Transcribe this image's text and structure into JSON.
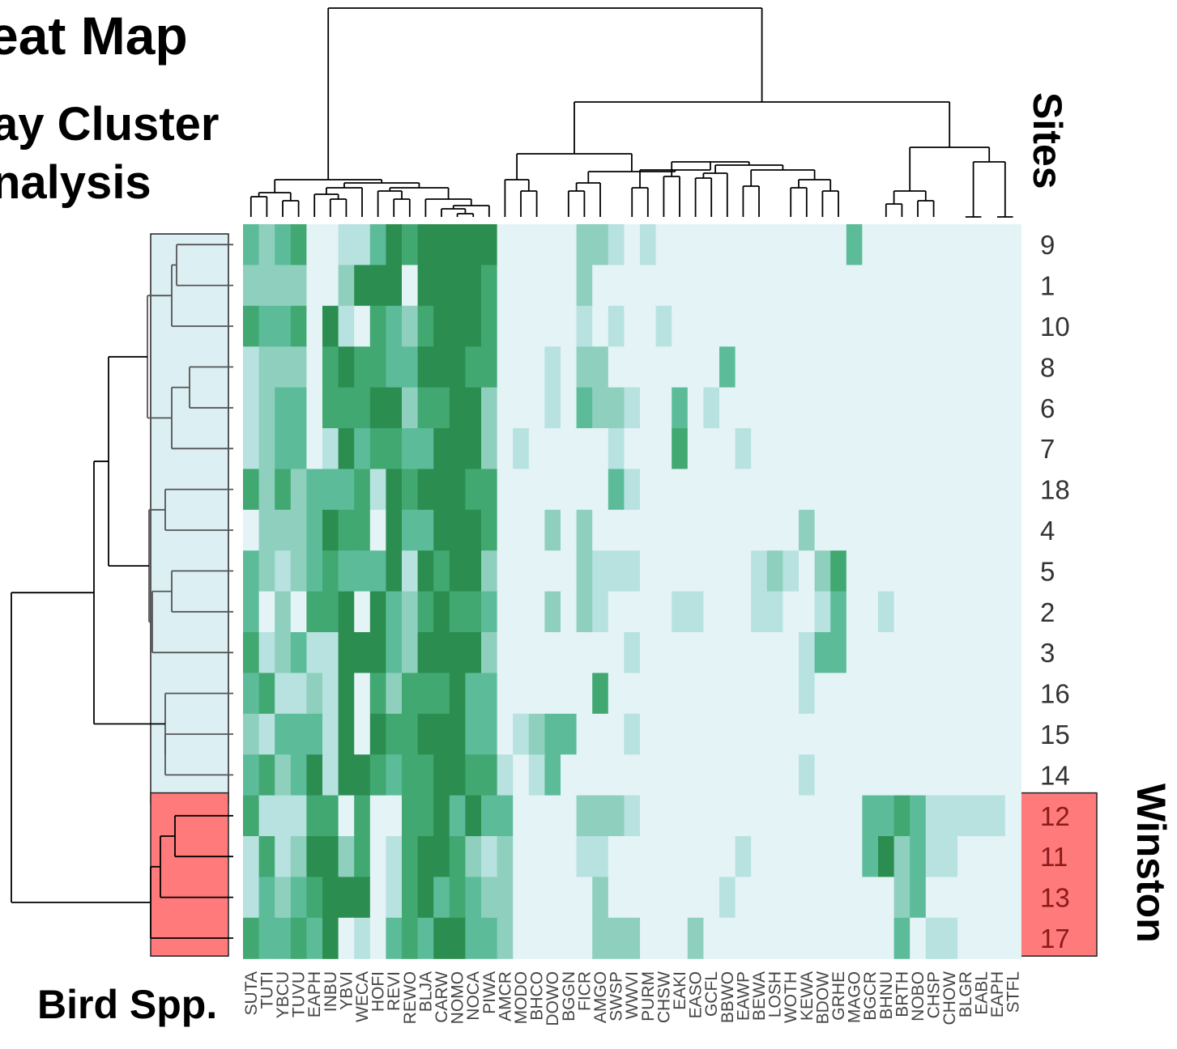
{
  "title_lines": [
    "eat Map",
    "ay Cluster",
    "nalysis"
  ],
  "x_axis_title": "Bird Spp.",
  "y_axis_title": "Sites",
  "group_label": "Winston",
  "colors": {
    "scale": [
      "#e3f3f6",
      "#b7e2df",
      "#8ed0bd",
      "#5cbc9a",
      "#41a872",
      "#2b8e50"
    ],
    "group_winston": "#ff7a7a",
    "group_other": "#dceff2",
    "dendrogram": "#555555",
    "dendrogram_dark": "#000000"
  },
  "chart_data": {
    "type": "heatmap",
    "title": "",
    "xlabel": "Bird Spp.",
    "ylabel": "Sites",
    "rows": [
      "9",
      "1",
      "10",
      "8",
      "6",
      "7",
      "18",
      "4",
      "5",
      "2",
      "3",
      "16",
      "15",
      "14",
      "12",
      "11",
      "13",
      "17"
    ],
    "row_groups": [
      "other",
      "other",
      "other",
      "other",
      "other",
      "other",
      "other",
      "other",
      "other",
      "other",
      "other",
      "other",
      "other",
      "other",
      "Winston",
      "Winston",
      "Winston",
      "Winston"
    ],
    "columns": [
      "SUTA",
      "TUTI",
      "YBCU",
      "TUVU",
      "EAPH",
      "INBU",
      "YBVI",
      "WECA",
      "HOFI",
      "REVI",
      "REWO",
      "BLJA",
      "CARW",
      "NOMO",
      "NOCA",
      "PIWA",
      "AMCR",
      "MODO",
      "BHCO",
      "DOWO",
      "BGGN",
      "FICR",
      "AMGO",
      "SWSP",
      "WWVI",
      "PURM",
      "CHSW",
      "EAKI",
      "EASO",
      "GCFL",
      "BBWO",
      "EAWP",
      "BEWA",
      "LOSH",
      "WOTH",
      "KEWA",
      "BDOW",
      "GRHE",
      "MAGO",
      "BGCR",
      "BHNU",
      "BRTH",
      "NOBO",
      "CHSP",
      "CHOW",
      "BLGR",
      "EABL",
      "EAPH",
      "STFL"
    ],
    "scale_levels": 6,
    "values": [
      [
        3,
        2,
        3,
        4,
        0,
        0,
        1,
        1,
        3,
        5,
        4,
        5,
        5,
        5,
        5,
        5,
        0,
        0,
        0,
        0,
        0,
        2,
        2,
        1,
        0,
        1,
        0,
        0,
        0,
        0,
        0,
        0,
        0,
        0,
        0,
        0,
        0,
        0,
        3,
        0,
        0,
        0,
        0,
        0,
        0,
        0,
        0,
        0,
        0
      ],
      [
        2,
        2,
        2,
        2,
        0,
        0,
        2,
        5,
        5,
        5,
        0,
        5,
        5,
        5,
        5,
        4,
        0,
        0,
        0,
        0,
        0,
        2,
        0,
        0,
        0,
        0,
        0,
        0,
        0,
        0,
        0,
        0,
        0,
        0,
        0,
        0,
        0,
        0,
        0,
        0,
        0,
        0,
        0,
        0,
        0,
        0,
        0,
        0,
        0
      ],
      [
        4,
        3,
        3,
        4,
        0,
        5,
        1,
        0,
        4,
        3,
        2,
        4,
        5,
        5,
        5,
        4,
        0,
        0,
        0,
        0,
        0,
        1,
        0,
        1,
        0,
        0,
        1,
        0,
        0,
        0,
        0,
        0,
        0,
        0,
        0,
        0,
        0,
        0,
        0,
        0,
        0,
        0,
        0,
        0,
        0,
        0,
        0,
        0,
        0
      ],
      [
        1,
        2,
        2,
        2,
        0,
        4,
        5,
        4,
        4,
        3,
        3,
        5,
        5,
        5,
        4,
        4,
        0,
        0,
        0,
        1,
        0,
        2,
        2,
        0,
        0,
        0,
        0,
        0,
        0,
        0,
        3,
        0,
        0,
        0,
        0,
        0,
        0,
        0,
        0,
        0,
        0,
        0,
        0,
        0,
        0,
        0,
        0,
        0,
        0
      ],
      [
        1,
        2,
        3,
        3,
        0,
        4,
        4,
        4,
        5,
        5,
        2,
        4,
        4,
        5,
        5,
        2,
        0,
        0,
        0,
        1,
        0,
        3,
        2,
        2,
        1,
        0,
        0,
        3,
        0,
        1,
        0,
        0,
        0,
        0,
        0,
        0,
        0,
        0,
        0,
        0,
        0,
        0,
        0,
        0,
        0,
        0,
        0,
        0,
        0
      ],
      [
        1,
        2,
        3,
        3,
        0,
        1,
        5,
        3,
        4,
        4,
        3,
        3,
        5,
        5,
        5,
        2,
        0,
        1,
        0,
        0,
        0,
        0,
        0,
        1,
        0,
        0,
        0,
        4,
        0,
        0,
        0,
        1,
        0,
        0,
        0,
        0,
        0,
        0,
        0,
        0,
        0,
        0,
        0,
        0,
        0,
        0,
        0,
        0,
        0
      ],
      [
        4,
        2,
        4,
        2,
        3,
        3,
        3,
        4,
        1,
        5,
        4,
        5,
        5,
        5,
        4,
        4,
        0,
        0,
        0,
        0,
        0,
        0,
        0,
        3,
        1,
        0,
        0,
        0,
        0,
        0,
        0,
        0,
        0,
        0,
        0,
        0,
        0,
        0,
        0,
        0,
        0,
        0,
        0,
        0,
        0,
        0,
        0,
        0,
        0
      ],
      [
        0,
        2,
        2,
        2,
        3,
        5,
        4,
        4,
        0,
        5,
        3,
        3,
        5,
        5,
        5,
        4,
        0,
        0,
        0,
        2,
        0,
        2,
        0,
        0,
        0,
        0,
        0,
        0,
        0,
        0,
        0,
        0,
        0,
        0,
        0,
        2,
        0,
        0,
        0,
        0,
        0,
        0,
        0,
        0,
        0,
        0,
        0,
        0,
        0
      ],
      [
        3,
        2,
        1,
        2,
        3,
        4,
        3,
        3,
        3,
        5,
        1,
        5,
        4,
        5,
        5,
        2,
        0,
        0,
        0,
        0,
        0,
        2,
        1,
        1,
        1,
        0,
        0,
        0,
        0,
        0,
        0,
        0,
        1,
        2,
        1,
        0,
        2,
        4,
        0,
        0,
        0,
        0,
        0,
        0,
        0,
        0,
        0,
        0,
        0
      ],
      [
        3,
        0,
        2,
        0,
        4,
        4,
        5,
        0,
        5,
        3,
        2,
        4,
        5,
        4,
        4,
        3,
        0,
        0,
        0,
        2,
        0,
        2,
        1,
        0,
        0,
        0,
        0,
        1,
        1,
        0,
        0,
        0,
        1,
        1,
        0,
        0,
        1,
        3,
        0,
        0,
        1,
        0,
        0,
        0,
        0,
        0,
        0,
        0,
        0
      ],
      [
        4,
        1,
        2,
        3,
        1,
        1,
        5,
        5,
        5,
        3,
        2,
        5,
        5,
        5,
        5,
        2,
        0,
        0,
        0,
        0,
        0,
        0,
        0,
        0,
        1,
        0,
        0,
        0,
        0,
        0,
        0,
        0,
        0,
        0,
        0,
        1,
        3,
        3,
        0,
        0,
        0,
        0,
        0,
        0,
        0,
        0,
        0,
        0,
        0
      ],
      [
        3,
        4,
        1,
        1,
        2,
        1,
        5,
        0,
        4,
        2,
        4,
        4,
        4,
        5,
        3,
        3,
        0,
        0,
        0,
        0,
        0,
        0,
        4,
        0,
        0,
        0,
        0,
        0,
        0,
        0,
        0,
        0,
        0,
        0,
        0,
        1,
        0,
        0,
        0,
        0,
        0,
        0,
        0,
        0,
        0,
        0,
        0,
        0,
        0
      ],
      [
        2,
        1,
        3,
        3,
        3,
        1,
        5,
        0,
        5,
        4,
        4,
        5,
        5,
        5,
        3,
        3,
        0,
        1,
        2,
        3,
        3,
        0,
        0,
        0,
        1,
        0,
        0,
        0,
        0,
        0,
        0,
        0,
        0,
        0,
        0,
        0,
        0,
        0,
        0,
        0,
        0,
        0,
        0,
        0,
        0,
        0,
        0,
        0,
        0
      ],
      [
        3,
        4,
        2,
        3,
        5,
        1,
        5,
        5,
        4,
        3,
        4,
        4,
        5,
        5,
        4,
        4,
        1,
        0,
        1,
        3,
        0,
        0,
        0,
        0,
        0,
        0,
        0,
        0,
        0,
        0,
        0,
        0,
        0,
        0,
        0,
        1,
        0,
        0,
        0,
        0,
        0,
        0,
        0,
        0,
        0,
        0,
        0,
        0,
        0
      ],
      [
        4,
        1,
        1,
        1,
        4,
        4,
        0,
        4,
        0,
        0,
        4,
        4,
        5,
        3,
        5,
        3,
        3,
        0,
        0,
        0,
        0,
        2,
        2,
        2,
        1,
        0,
        0,
        0,
        0,
        0,
        0,
        0,
        0,
        0,
        0,
        0,
        0,
        0,
        0,
        3,
        3,
        4,
        3,
        1,
        1,
        1,
        1,
        1,
        0
      ],
      [
        1,
        4,
        1,
        2,
        5,
        5,
        2,
        4,
        0,
        1,
        4,
        5,
        5,
        4,
        2,
        1,
        2,
        0,
        0,
        0,
        0,
        1,
        1,
        0,
        0,
        0,
        0,
        0,
        0,
        0,
        0,
        1,
        0,
        0,
        0,
        0,
        0,
        0,
        0,
        3,
        5,
        2,
        3,
        1,
        1,
        0,
        0,
        0,
        0
      ],
      [
        1,
        3,
        2,
        3,
        4,
        5,
        5,
        5,
        0,
        1,
        4,
        5,
        3,
        4,
        3,
        2,
        2,
        0,
        0,
        0,
        0,
        0,
        2,
        0,
        0,
        0,
        0,
        0,
        0,
        0,
        1,
        0,
        0,
        0,
        0,
        0,
        0,
        0,
        0,
        0,
        0,
        2,
        3,
        0,
        0,
        0,
        0,
        0,
        0
      ],
      [
        4,
        3,
        3,
        4,
        3,
        5,
        0,
        1,
        0,
        3,
        4,
        3,
        5,
        5,
        3,
        3,
        2,
        0,
        0,
        0,
        0,
        0,
        2,
        2,
        2,
        0,
        0,
        0,
        2,
        0,
        0,
        0,
        0,
        0,
        0,
        0,
        0,
        0,
        0,
        0,
        0,
        3,
        0,
        1,
        1,
        0,
        0,
        0,
        0
      ]
    ]
  }
}
